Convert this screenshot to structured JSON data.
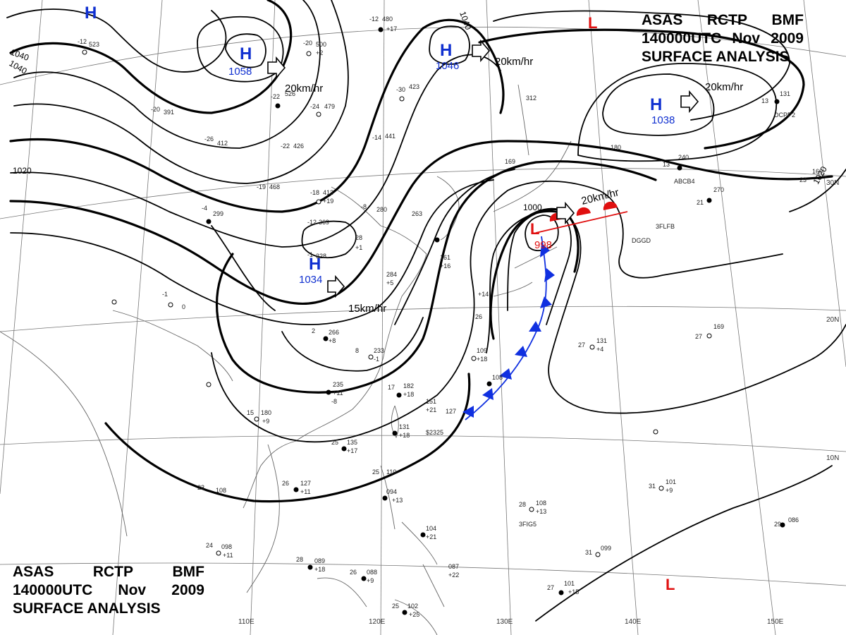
{
  "title": {
    "line1": [
      "ASAS",
      "RCTP",
      "BMF"
    ],
    "line2": [
      "140000UTC",
      "Nov",
      "2009"
    ],
    "line3": "SURFACE ANALYSIS"
  },
  "colors": {
    "high": "#1030d0",
    "low": "#e01010",
    "isobar": "#000000",
    "grid": "#777777",
    "coast": "#666666",
    "cold_front": "#1030e0",
    "warm_front": "#e01010"
  },
  "longitude_labels": [
    "110E",
    "120E",
    "130E",
    "140E",
    "150E"
  ],
  "latitude_labels": [
    "30N",
    "20N",
    "10N"
  ],
  "pressure_centers": [
    {
      "type": "H",
      "value": "1058",
      "motion": "20km/hr"
    },
    {
      "type": "H",
      "value": "1046",
      "motion": "20km/hr"
    },
    {
      "type": "H",
      "value": "1038",
      "motion": "20km/hr"
    },
    {
      "type": "H",
      "value": "1034",
      "motion": "15km/hr"
    },
    {
      "type": "H",
      "value": ""
    },
    {
      "type": "L",
      "value": "998",
      "motion": "20km/hr"
    },
    {
      "type": "L",
      "value": ""
    },
    {
      "type": "L",
      "value": ""
    }
  ],
  "isobar_labels": [
    "1040",
    "1040",
    "1020",
    "1020",
    "1040",
    "1000"
  ],
  "station_values": [
    "-12",
    "523",
    "-20",
    "500",
    "+2",
    "-12",
    "480",
    "+17",
    "-20",
    "391",
    "-22",
    "526",
    "-24",
    "479",
    "-30",
    "423",
    "-26",
    "412",
    "-22",
    "426",
    "-14",
    "441",
    "-19",
    "468",
    "-18",
    "413",
    "+19",
    "-4",
    "299",
    "-12",
    "369",
    "-8",
    "280",
    "28",
    "+1",
    "263",
    "-1",
    "328",
    "284",
    "+5",
    "161",
    "+16",
    "2",
    "266",
    "+8",
    "8",
    "233",
    "-1",
    "235",
    "+11",
    "-8",
    "17",
    "182",
    "+18",
    "151",
    "+21",
    "131",
    "+18",
    "127",
    "109",
    "+18",
    "108",
    "25",
    "135",
    "+17",
    "15",
    "180",
    "+9",
    "26",
    "127",
    "+11",
    "23",
    "108",
    "25",
    "110",
    "094",
    "+13",
    "104",
    "+21",
    "24",
    "098",
    "+11",
    "28",
    "089",
    "+18",
    "26",
    "088",
    "+9",
    "087",
    "+22",
    "25",
    "102",
    "+25",
    "28",
    "108",
    "+13",
    "31",
    "101",
    "+9",
    "29",
    "086",
    "31",
    "099",
    "27",
    "101",
    "+15",
    "27",
    "131",
    "+4",
    "27",
    "169",
    "21",
    "270",
    "13",
    "131",
    "13",
    "240",
    "23",
    "160",
    "312",
    "180",
    "169",
    "+14",
    "26",
    "-1",
    "0",
    "3FLFB",
    "3FIG5",
    "DCPP2",
    "DGGD",
    "ABCB4",
    "$2325"
  ]
}
